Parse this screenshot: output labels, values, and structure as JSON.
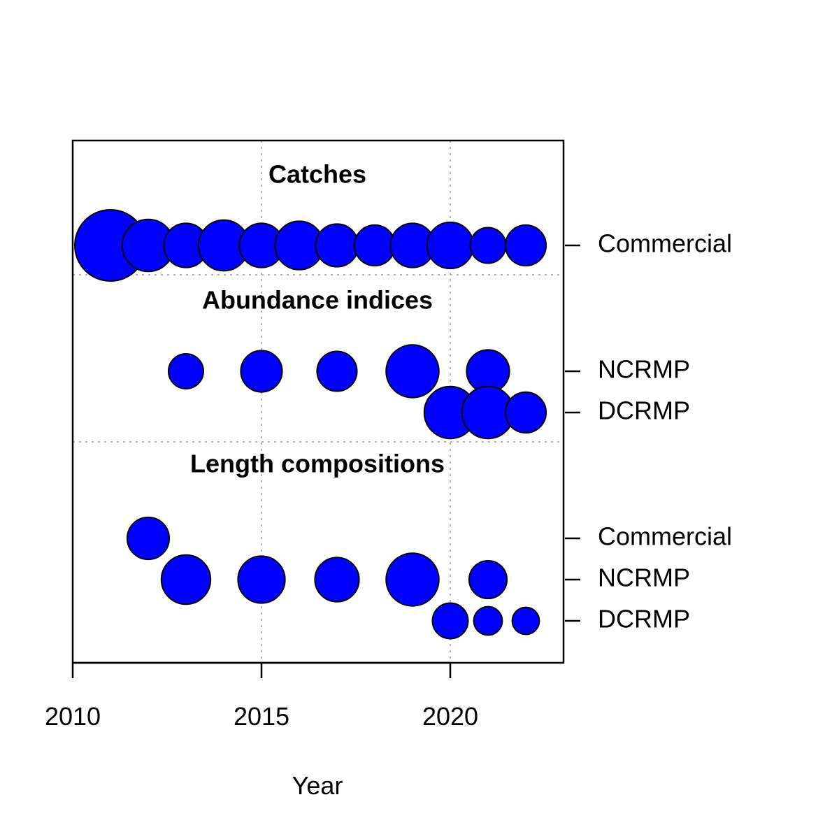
{
  "chart_data": {
    "type": "scatter",
    "subtype": "bubble",
    "xlabel": "Year",
    "ylabel": "",
    "xlim": [
      2010,
      2023
    ],
    "x_ticks": [
      "2010",
      "2015",
      "2020"
    ],
    "grid": true,
    "bubble_fill": "#0000ff",
    "bubble_stroke": "#000000",
    "sections": [
      {
        "title": "Catches",
        "rows": [
          {
            "label": "Commercial",
            "points": [
              {
                "x": 2011,
                "size": 1.0
              },
              {
                "x": 2012,
                "size": 0.73
              },
              {
                "x": 2013,
                "size": 0.62
              },
              {
                "x": 2014,
                "size": 0.71
              },
              {
                "x": 2015,
                "size": 0.62
              },
              {
                "x": 2016,
                "size": 0.68
              },
              {
                "x": 2017,
                "size": 0.6
              },
              {
                "x": 2018,
                "size": 0.57
              },
              {
                "x": 2019,
                "size": 0.62
              },
              {
                "x": 2020,
                "size": 0.65
              },
              {
                "x": 2021,
                "size": 0.5
              },
              {
                "x": 2022,
                "size": 0.57
              }
            ]
          }
        ]
      },
      {
        "title": "Abundance indices",
        "rows": [
          {
            "label": "NCRMP",
            "points": [
              {
                "x": 2013,
                "size": 0.49
              },
              {
                "x": 2015,
                "size": 0.58
              },
              {
                "x": 2017,
                "size": 0.56
              },
              {
                "x": 2019,
                "size": 0.74
              },
              {
                "x": 2021,
                "size": 0.6
              }
            ]
          },
          {
            "label": "DCRMP",
            "points": [
              {
                "x": 2020,
                "size": 0.73
              },
              {
                "x": 2021,
                "size": 0.73
              },
              {
                "x": 2022,
                "size": 0.57
              }
            ]
          }
        ]
      },
      {
        "title": "Length compositions",
        "rows": [
          {
            "label": "Commercial",
            "points": [
              {
                "x": 2012,
                "size": 0.59
              }
            ]
          },
          {
            "label": "NCRMP",
            "points": [
              {
                "x": 2013,
                "size": 0.69
              },
              {
                "x": 2015,
                "size": 0.66
              },
              {
                "x": 2017,
                "size": 0.62
              },
              {
                "x": 2019,
                "size": 0.74
              },
              {
                "x": 2021,
                "size": 0.53
              }
            ]
          },
          {
            "label": "DCRMP",
            "points": [
              {
                "x": 2020,
                "size": 0.5
              },
              {
                "x": 2021,
                "size": 0.4
              },
              {
                "x": 2022,
                "size": 0.38
              }
            ]
          }
        ]
      }
    ]
  }
}
